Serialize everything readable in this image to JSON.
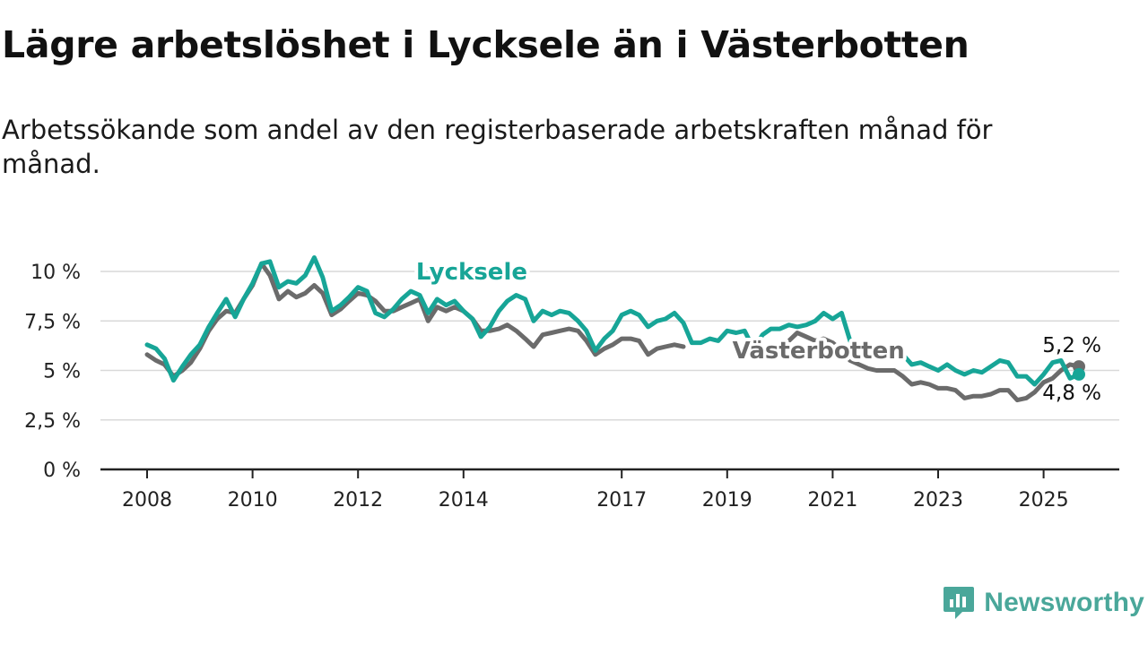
{
  "title": "Lägre arbetslöshet i Lycksele än i Västerbotten",
  "subtitle": "Arbetssökande som andel av den registerbaserade arbetskraften månad för månad.",
  "brand": {
    "name": "Newsworthy",
    "icon": "newsworthy-logo-icon"
  },
  "chart_data": {
    "type": "line",
    "title": "",
    "xlabel": "",
    "ylabel": "",
    "xlim": [
      2007.5,
      2026.5
    ],
    "ylim": [
      0,
      10.5
    ],
    "grid": true,
    "legend": "inline labels",
    "y_ticks": [
      {
        "value": 0,
        "label": "0 %"
      },
      {
        "value": 2.5,
        "label": "2,5 %"
      },
      {
        "value": 5,
        "label": "5 %"
      },
      {
        "value": 7.5,
        "label": "7,5 %"
      },
      {
        "value": 10,
        "label": "10 %"
      }
    ],
    "x_ticks": [
      {
        "value": 2008,
        "label": "2008"
      },
      {
        "value": 2010,
        "label": "2010"
      },
      {
        "value": 2012,
        "label": "2012"
      },
      {
        "value": 2014,
        "label": "2014"
      },
      {
        "value": 2017,
        "label": "2017"
      },
      {
        "value": 2019,
        "label": "2019"
      },
      {
        "value": 2021,
        "label": "2021"
      },
      {
        "value": 2023,
        "label": "2023"
      },
      {
        "value": 2025,
        "label": "2025"
      }
    ],
    "series": [
      {
        "name": "Västerbotten",
        "color": "#6b6b6b",
        "end_label": "5,2 %",
        "points": [
          [
            2008.0,
            5.8
          ],
          [
            2008.17,
            5.5
          ],
          [
            2008.33,
            5.3
          ],
          [
            2008.5,
            4.7
          ],
          [
            2008.67,
            5.0
          ],
          [
            2008.83,
            5.4
          ],
          [
            2009.0,
            6.1
          ],
          [
            2009.17,
            7.0
          ],
          [
            2009.33,
            7.6
          ],
          [
            2009.5,
            8.0
          ],
          [
            2009.67,
            7.9
          ],
          [
            2009.83,
            8.6
          ],
          [
            2010.0,
            9.3
          ],
          [
            2010.17,
            10.4
          ],
          [
            2010.33,
            9.8
          ],
          [
            2010.5,
            8.6
          ],
          [
            2010.67,
            9.0
          ],
          [
            2010.83,
            8.7
          ],
          [
            2011.0,
            8.9
          ],
          [
            2011.17,
            9.3
          ],
          [
            2011.33,
            8.9
          ],
          [
            2011.5,
            7.8
          ],
          [
            2011.67,
            8.1
          ],
          [
            2011.83,
            8.5
          ],
          [
            2012.0,
            8.9
          ],
          [
            2012.17,
            8.8
          ],
          [
            2012.33,
            8.5
          ],
          [
            2012.5,
            8.0
          ],
          [
            2012.67,
            8.0
          ],
          [
            2012.83,
            8.2
          ],
          [
            2013.0,
            8.4
          ],
          [
            2013.17,
            8.6
          ],
          [
            2013.33,
            7.5
          ],
          [
            2013.5,
            8.2
          ],
          [
            2013.67,
            8.0
          ],
          [
            2013.83,
            8.2
          ],
          [
            2014.0,
            8.0
          ],
          [
            2014.17,
            7.6
          ],
          [
            2014.33,
            7.0
          ],
          [
            2014.5,
            7.0
          ],
          [
            2014.67,
            7.1
          ],
          [
            2014.83,
            7.3
          ],
          [
            2015.0,
            7.0
          ],
          [
            2015.17,
            6.6
          ],
          [
            2015.33,
            6.2
          ],
          [
            2015.5,
            6.8
          ],
          [
            2015.67,
            6.9
          ],
          [
            2015.83,
            7.0
          ],
          [
            2016.0,
            7.1
          ],
          [
            2016.17,
            7.0
          ],
          [
            2016.33,
            6.5
          ],
          [
            2016.5,
            5.8
          ],
          [
            2016.67,
            6.1
          ],
          [
            2016.83,
            6.3
          ],
          [
            2017.0,
            6.6
          ],
          [
            2017.17,
            6.6
          ],
          [
            2017.33,
            6.5
          ],
          [
            2017.5,
            5.8
          ],
          [
            2017.67,
            6.1
          ],
          [
            2017.83,
            6.2
          ],
          [
            2018.0,
            6.3
          ],
          [
            2018.17,
            6.2
          ]
        ],
        "points2": [
          [
            2020.0,
            6.2
          ],
          [
            2020.17,
            6.5
          ],
          [
            2020.33,
            6.9
          ],
          [
            2020.5,
            6.7
          ],
          [
            2020.67,
            6.5
          ],
          [
            2020.83,
            6.6
          ],
          [
            2021.0,
            6.4
          ],
          [
            2021.17,
            6.0
          ],
          [
            2021.33,
            5.5
          ],
          [
            2021.5,
            5.3
          ],
          [
            2021.67,
            5.1
          ],
          [
            2021.83,
            5.0
          ],
          [
            2022.0,
            5.0
          ],
          [
            2022.17,
            5.0
          ],
          [
            2022.33,
            4.7
          ],
          [
            2022.5,
            4.3
          ],
          [
            2022.67,
            4.4
          ],
          [
            2022.83,
            4.3
          ],
          [
            2023.0,
            4.1
          ],
          [
            2023.17,
            4.1
          ],
          [
            2023.33,
            4.0
          ],
          [
            2023.5,
            3.6
          ],
          [
            2023.67,
            3.7
          ],
          [
            2023.83,
            3.7
          ],
          [
            2024.0,
            3.8
          ],
          [
            2024.17,
            4.0
          ],
          [
            2024.33,
            4.0
          ],
          [
            2024.5,
            3.5
          ],
          [
            2024.67,
            3.6
          ],
          [
            2024.83,
            3.9
          ],
          [
            2025.0,
            4.4
          ],
          [
            2025.17,
            4.6
          ],
          [
            2025.33,
            5.0
          ],
          [
            2025.5,
            5.3
          ],
          [
            2025.67,
            5.2
          ]
        ]
      },
      {
        "name": "Lycksele",
        "color": "#17a597",
        "end_label": "4,8 %",
        "points": [
          [
            2008.0,
            6.3
          ],
          [
            2008.17,
            6.1
          ],
          [
            2008.33,
            5.6
          ],
          [
            2008.5,
            4.5
          ],
          [
            2008.67,
            5.2
          ],
          [
            2008.83,
            5.8
          ],
          [
            2009.0,
            6.3
          ],
          [
            2009.17,
            7.2
          ],
          [
            2009.33,
            7.9
          ],
          [
            2009.5,
            8.6
          ],
          [
            2009.67,
            7.7
          ],
          [
            2009.83,
            8.6
          ],
          [
            2010.0,
            9.4
          ],
          [
            2010.17,
            10.4
          ],
          [
            2010.33,
            10.5
          ],
          [
            2010.5,
            9.2
          ],
          [
            2010.67,
            9.5
          ],
          [
            2010.83,
            9.4
          ],
          [
            2011.0,
            9.8
          ],
          [
            2011.17,
            10.7
          ],
          [
            2011.33,
            9.7
          ],
          [
            2011.5,
            8.0
          ],
          [
            2011.67,
            8.3
          ],
          [
            2011.83,
            8.7
          ],
          [
            2012.0,
            9.2
          ],
          [
            2012.17,
            9.0
          ],
          [
            2012.33,
            7.9
          ],
          [
            2012.5,
            7.7
          ],
          [
            2012.67,
            8.1
          ],
          [
            2012.83,
            8.6
          ],
          [
            2013.0,
            9.0
          ],
          [
            2013.17,
            8.8
          ],
          [
            2013.33,
            7.9
          ],
          [
            2013.5,
            8.6
          ],
          [
            2013.67,
            8.3
          ],
          [
            2013.83,
            8.5
          ],
          [
            2014.0,
            8.0
          ],
          [
            2014.17,
            7.6
          ],
          [
            2014.33,
            6.7
          ],
          [
            2014.5,
            7.2
          ],
          [
            2014.67,
            8.0
          ],
          [
            2014.83,
            8.5
          ],
          [
            2015.0,
            8.8
          ],
          [
            2015.17,
            8.6
          ],
          [
            2015.33,
            7.5
          ],
          [
            2015.5,
            8.0
          ],
          [
            2015.67,
            7.8
          ],
          [
            2015.83,
            8.0
          ],
          [
            2016.0,
            7.9
          ],
          [
            2016.17,
            7.5
          ],
          [
            2016.33,
            7.0
          ],
          [
            2016.5,
            6.0
          ],
          [
            2016.67,
            6.6
          ],
          [
            2016.83,
            7.0
          ],
          [
            2017.0,
            7.8
          ],
          [
            2017.17,
            8.0
          ],
          [
            2017.33,
            7.8
          ],
          [
            2017.5,
            7.2
          ],
          [
            2017.67,
            7.5
          ],
          [
            2017.83,
            7.6
          ],
          [
            2018.0,
            7.9
          ],
          [
            2018.17,
            7.4
          ],
          [
            2018.33,
            6.4
          ],
          [
            2018.5,
            6.4
          ],
          [
            2018.67,
            6.6
          ],
          [
            2018.83,
            6.5
          ],
          [
            2019.0,
            7.0
          ],
          [
            2019.17,
            6.9
          ],
          [
            2019.33,
            7.0
          ],
          [
            2019.5,
            6.1
          ],
          [
            2019.67,
            6.8
          ],
          [
            2019.83,
            7.1
          ],
          [
            2020.0,
            7.1
          ],
          [
            2020.17,
            7.3
          ],
          [
            2020.33,
            7.2
          ],
          [
            2020.5,
            7.3
          ],
          [
            2020.67,
            7.5
          ],
          [
            2020.83,
            7.9
          ],
          [
            2021.0,
            7.6
          ],
          [
            2021.17,
            7.9
          ],
          [
            2021.33,
            6.5
          ],
          [
            2021.5,
            6.3
          ],
          [
            2021.67,
            6.0
          ],
          [
            2021.83,
            6.0
          ],
          [
            2022.0,
            6.2
          ],
          [
            2022.17,
            5.8
          ],
          [
            2022.33,
            5.8
          ],
          [
            2022.5,
            5.3
          ],
          [
            2022.67,
            5.4
          ],
          [
            2022.83,
            5.2
          ],
          [
            2023.0,
            5.0
          ],
          [
            2023.17,
            5.3
          ],
          [
            2023.33,
            5.0
          ],
          [
            2023.5,
            4.8
          ],
          [
            2023.67,
            5.0
          ],
          [
            2023.83,
            4.9
          ],
          [
            2024.0,
            5.2
          ],
          [
            2024.17,
            5.5
          ],
          [
            2024.33,
            5.4
          ],
          [
            2024.5,
            4.7
          ],
          [
            2024.67,
            4.7
          ],
          [
            2024.83,
            4.3
          ],
          [
            2025.0,
            4.8
          ],
          [
            2025.17,
            5.4
          ],
          [
            2025.33,
            5.5
          ],
          [
            2025.5,
            4.6
          ],
          [
            2025.67,
            4.8
          ]
        ]
      }
    ],
    "inline_labels": [
      {
        "series": "Lycksele",
        "text": "Lycksele",
        "x": 2013.1,
        "y": 9.6
      },
      {
        "series": "Västerbotten",
        "text": "Västerbotten",
        "x": 2019.1,
        "y": 5.6
      }
    ]
  }
}
